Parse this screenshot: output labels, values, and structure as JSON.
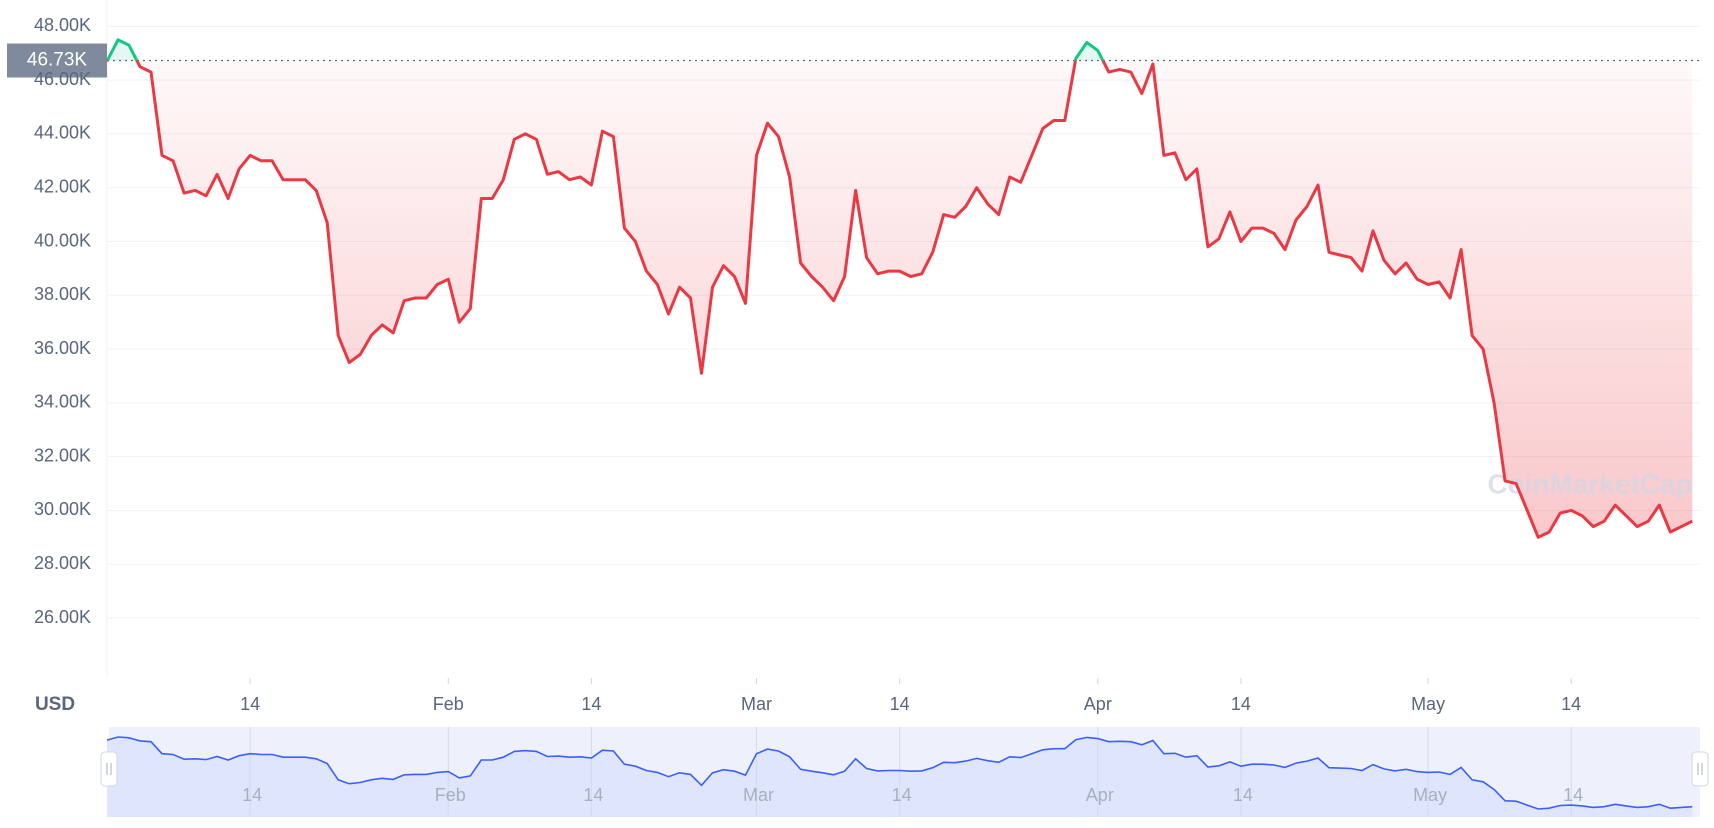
{
  "chart_data": {
    "type": "line",
    "currency_label": "USD",
    "watermark": "CoinMarketCap",
    "reference_line": {
      "value": 46730,
      "label": "46.73K"
    },
    "colors": {
      "up": "#16c784",
      "down": "#ea3943",
      "navigator": "#3861fb"
    },
    "grid": true,
    "xlim": [
      1,
      145.7
    ],
    "xticks": [
      {
        "value": 14,
        "label": "14"
      },
      {
        "value": 32,
        "label": "Feb"
      },
      {
        "value": 45,
        "label": "14"
      },
      {
        "value": 60,
        "label": "Mar"
      },
      {
        "value": 73,
        "label": "14"
      },
      {
        "value": 91,
        "label": "Apr"
      },
      {
        "value": 104,
        "label": "14"
      },
      {
        "value": 121,
        "label": "May"
      },
      {
        "value": 134,
        "label": "14"
      }
    ],
    "ylim": [
      23770,
      48980
    ],
    "yticks": [
      {
        "value": 26000,
        "label": "26.00K"
      },
      {
        "value": 28000,
        "label": "28.00K"
      },
      {
        "value": 30000,
        "label": "30.00K"
      },
      {
        "value": 32000,
        "label": "32.00K"
      },
      {
        "value": 34000,
        "label": "34.00K"
      },
      {
        "value": 36000,
        "label": "36.00K"
      },
      {
        "value": 38000,
        "label": "38.00K"
      },
      {
        "value": 40000,
        "label": "40.00K"
      },
      {
        "value": 42000,
        "label": "42.00K"
      },
      {
        "value": 44000,
        "label": "44.00K"
      },
      {
        "value": 46000,
        "label": "46.00K"
      },
      {
        "value": 48000,
        "label": "48.00K"
      }
    ],
    "x": [
      1,
      2,
      3,
      4,
      5,
      6,
      7,
      8,
      9,
      10,
      11,
      12,
      13,
      14,
      15,
      16,
      17,
      18,
      19,
      20,
      21,
      22,
      23,
      24,
      25,
      26,
      27,
      28,
      29,
      30,
      31,
      32,
      33,
      34,
      35,
      36,
      37,
      38,
      39,
      40,
      41,
      42,
      43,
      44,
      45,
      46,
      47,
      48,
      49,
      50,
      51,
      52,
      53,
      54,
      55,
      56,
      57,
      58,
      59,
      60,
      61,
      62,
      63,
      64,
      65,
      66,
      67,
      68,
      69,
      70,
      71,
      72,
      73,
      74,
      75,
      76,
      77,
      78,
      79,
      80,
      81,
      82,
      83,
      84,
      85,
      86,
      87,
      88,
      89,
      90,
      91,
      92,
      93,
      94,
      95,
      96,
      97,
      98,
      99,
      100,
      101,
      102,
      103,
      104,
      105,
      106,
      107,
      108,
      109,
      110,
      111,
      112,
      113,
      114,
      115,
      116,
      117,
      118,
      119,
      120,
      121,
      122,
      123,
      124,
      125,
      126,
      127,
      128,
      129,
      130,
      131,
      132,
      133,
      134,
      135,
      136,
      137,
      138,
      139,
      140,
      141,
      142,
      143,
      144,
      145
    ],
    "values": [
      46700,
      47500,
      47300,
      46500,
      46300,
      43200,
      43000,
      41800,
      41900,
      41700,
      42500,
      41600,
      42700,
      43200,
      43000,
      43000,
      42300,
      42300,
      42300,
      41900,
      40700,
      36500,
      35500,
      35800,
      36500,
      36900,
      36600,
      37800,
      37900,
      37900,
      38400,
      38600,
      37000,
      37500,
      41600,
      41600,
      42300,
      43800,
      44000,
      43800,
      42500,
      42600,
      42300,
      42400,
      42100,
      44100,
      43900,
      40500,
      40000,
      38900,
      38400,
      37300,
      38300,
      37900,
      35100,
      38300,
      39100,
      38700,
      37700,
      43200,
      44400,
      43900,
      42400,
      39200,
      38700,
      38300,
      37800,
      38700,
      41900,
      39400,
      38800,
      38900,
      38900,
      38700,
      38800,
      39600,
      41000,
      40900,
      41300,
      42000,
      41400,
      41000,
      42400,
      42200,
      43200,
      44200,
      44500,
      44500,
      46800,
      47400,
      47100,
      46300,
      46400,
      46300,
      45500,
      46600,
      43200,
      43300,
      42300,
      42700,
      39800,
      40100,
      41100,
      40000,
      40500,
      40500,
      40300,
      39700,
      40800,
      41300,
      42100,
      39600,
      39500,
      39400,
      38900,
      40400,
      39300,
      38800,
      39200,
      38600,
      38400,
      38500,
      37900,
      39700,
      36500,
      36000,
      34000,
      31100,
      31000,
      30000,
      29000,
      29200,
      29900,
      30000,
      29800,
      29400,
      29600,
      30200,
      29800,
      29400,
      29600,
      30200,
      29200,
      29400,
      29600
    ]
  }
}
